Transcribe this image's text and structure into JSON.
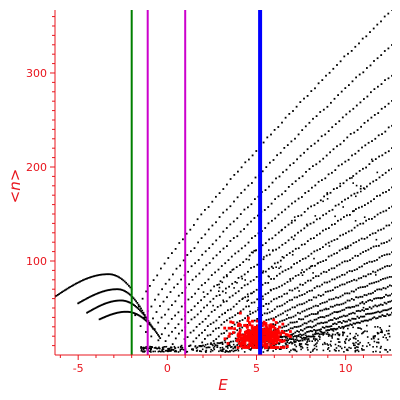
{
  "chart_data": {
    "type": "scatter",
    "title": "",
    "xlabel": "E",
    "ylabel": "<n>",
    "xlim": [
      -6.3,
      12.6
    ],
    "ylim": [
      0,
      367
    ],
    "x_ticks": [
      -5,
      0,
      5,
      10
    ],
    "y_ticks": [
      100,
      200,
      300
    ],
    "grid": false,
    "colors": {
      "axis": "#e8141c",
      "points": "#000000",
      "highlight_points": "#ff0000",
      "line_green": "#007f00",
      "line_magenta": "#cc00cc",
      "line_blue": "#0000ff"
    },
    "vertical_lines": [
      {
        "x": -2.0,
        "color": "#007f00"
      },
      {
        "x": -1.1,
        "color": "#cc00cc"
      },
      {
        "x": 1.0,
        "color": "#cc00cc"
      },
      {
        "x": 5.2,
        "color": "#0000ff"
      }
    ],
    "branches": [
      {
        "x_start": -1.8,
        "y_start": 42,
        "x_end": 12.6,
        "y_end": 367
      },
      {
        "x_start": -1.5,
        "y_start": 30,
        "x_end": 12.6,
        "y_end": 330
      },
      {
        "x_start": -1.2,
        "y_start": 25,
        "x_end": 12.6,
        "y_end": 298
      },
      {
        "x_start": -0.9,
        "y_start": 20,
        "x_end": 12.6,
        "y_end": 270
      },
      {
        "x_start": -0.5,
        "y_start": 16,
        "x_end": 12.6,
        "y_end": 244
      },
      {
        "x_start": -0.1,
        "y_start": 14,
        "x_end": 12.6,
        "y_end": 220
      },
      {
        "x_start": 0.3,
        "y_start": 12,
        "x_end": 12.6,
        "y_end": 198
      },
      {
        "x_start": 0.8,
        "y_start": 11,
        "x_end": 12.6,
        "y_end": 178
      },
      {
        "x_start": 1.3,
        "y_start": 10,
        "x_end": 12.6,
        "y_end": 158
      },
      {
        "x_start": 1.8,
        "y_start": 10,
        "x_end": 12.6,
        "y_end": 140
      },
      {
        "x_start": 2.3,
        "y_start": 9,
        "x_end": 12.6,
        "y_end": 124
      },
      {
        "x_start": 2.8,
        "y_start": 9,
        "x_end": 12.6,
        "y_end": 109
      },
      {
        "x_start": 3.3,
        "y_start": 9,
        "x_end": 12.6,
        "y_end": 96
      },
      {
        "x_start": 3.8,
        "y_start": 8,
        "x_end": 12.6,
        "y_end": 84
      },
      {
        "x_start": 4.3,
        "y_start": 8,
        "x_end": 12.6,
        "y_end": 74
      },
      {
        "x_start": 4.8,
        "y_start": 8,
        "x_end": 12.6,
        "y_end": 65
      },
      {
        "x_start": 5.3,
        "y_start": 8,
        "x_end": 12.6,
        "y_end": 57
      },
      {
        "x_start": 5.8,
        "y_start": 8,
        "x_end": 12.6,
        "y_end": 50
      },
      {
        "x_start": 6.3,
        "y_start": 7,
        "x_end": 12.6,
        "y_end": 44
      }
    ],
    "lower_arcs": [
      {
        "x_start": -6.3,
        "y_start": 62,
        "x_peak": -3.3,
        "y_peak": 86,
        "x_end": -2.0,
        "y_end": 70
      },
      {
        "x_start": -5.0,
        "y_start": 55,
        "x_peak": -2.8,
        "y_peak": 70,
        "x_end": -1.2,
        "y_end": 40
      },
      {
        "x_start": -4.5,
        "y_start": 45,
        "x_peak": -2.6,
        "y_peak": 58,
        "x_end": -0.8,
        "y_end": 28
      },
      {
        "x_start": -3.8,
        "y_start": 38,
        "x_peak": -2.3,
        "y_peak": 46,
        "x_end": -0.4,
        "y_end": 18
      }
    ],
    "red_cluster": {
      "x_center": 5.2,
      "y_center": 20,
      "x_spread": 1.3,
      "y_spread": 7,
      "count": 380
    }
  }
}
